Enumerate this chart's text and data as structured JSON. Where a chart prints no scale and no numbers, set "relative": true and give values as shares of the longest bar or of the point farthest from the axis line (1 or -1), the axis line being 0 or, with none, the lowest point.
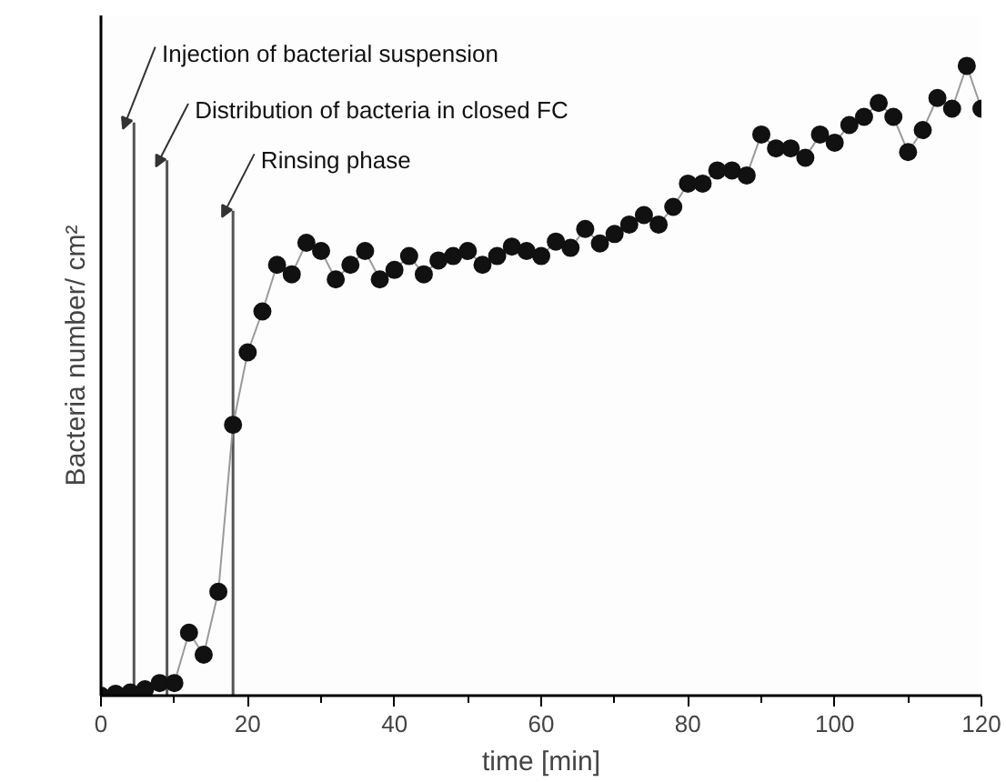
{
  "chart_data": {
    "type": "line",
    "relative": true,
    "xlabel": "time [min]",
    "ylabel": "Bacteria number/ cm²",
    "marker": "circle",
    "grid": false,
    "xlim": [
      0,
      120
    ],
    "xticks": [
      0,
      {
        "value": 10,
        "label": null
      },
      20,
      {
        "value": 30,
        "label": null
      },
      40,
      {
        "value": 50,
        "label": null
      },
      60,
      {
        "value": 70,
        "label": null
      },
      80,
      {
        "value": 90,
        "label": null
      },
      100,
      {
        "value": 110,
        "label": null
      },
      120
    ],
    "ref_lines": [
      {
        "axis": "x",
        "value": 4.5,
        "label": "Injection of bacterial suspension",
        "color": "#555555"
      },
      {
        "axis": "x",
        "value": 9,
        "label": "Distribution of bacteria in closed FC",
        "color": "#555555"
      },
      {
        "axis": "x",
        "value": 18,
        "label": "Rinsing phase",
        "color": "#555555"
      }
    ],
    "series": [
      {
        "color": "#111111",
        "x": [
          0,
          2,
          4,
          6,
          8,
          10,
          12,
          14,
          16,
          18,
          20,
          22,
          24,
          26,
          28,
          30,
          32,
          34,
          36,
          38,
          40,
          42,
          44,
          46,
          48,
          50,
          52,
          54,
          56,
          58,
          60,
          62,
          64,
          66,
          68,
          70,
          72,
          74,
          76,
          78,
          80,
          82,
          84,
          86,
          88,
          90,
          92,
          94,
          96,
          98,
          100,
          102,
          104,
          106,
          108,
          110,
          112,
          114,
          116,
          118,
          120
        ],
        "values": [
          0,
          0.003,
          0.005,
          0.01,
          0.02,
          0.02,
          0.1,
          0.065,
          0.165,
          0.43,
          0.545,
          0.61,
          0.684,
          0.669,
          0.719,
          0.706,
          0.661,
          0.684,
          0.706,
          0.661,
          0.676,
          0.698,
          0.669,
          0.691,
          0.698,
          0.706,
          0.684,
          0.698,
          0.713,
          0.706,
          0.698,
          0.721,
          0.711,
          0.741,
          0.718,
          0.733,
          0.748,
          0.763,
          0.748,
          0.776,
          0.813,
          0.813,
          0.834,
          0.834,
          0.826,
          0.891,
          0.869,
          0.869,
          0.854,
          0.891,
          0.878,
          0.906,
          0.919,
          0.941,
          0.919,
          0.863,
          0.898,
          0.949,
          0.932,
          1,
          0.932
        ]
      }
    ]
  }
}
